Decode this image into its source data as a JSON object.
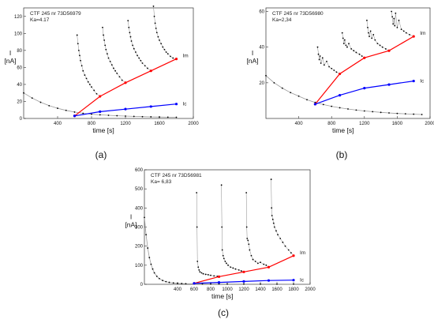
{
  "chart_data": [
    {
      "panel_caption": "(a)",
      "type": "line",
      "legend": [
        "CTF 245 nr 73D56979",
        "Ka=4.17"
      ],
      "xlabel": "time [s]",
      "ylabel_lines": [
        "I",
        "[nA]"
      ],
      "xlim": [
        0,
        2000
      ],
      "ylim": [
        0,
        130
      ],
      "xticks": [
        400,
        800,
        1200,
        1600,
        2000
      ],
      "yticks": [
        0,
        20,
        40,
        60,
        80,
        100,
        120
      ],
      "series": [
        {
          "name": "Im",
          "color": "#ff0000",
          "x": [
            600,
            900,
            1200,
            1500,
            1800
          ],
          "y": [
            3,
            26,
            42,
            56,
            70
          ]
        },
        {
          "name": "Ic",
          "color": "#0000ff",
          "x": [
            600,
            900,
            1200,
            1500,
            1800
          ],
          "y": [
            3,
            8,
            11,
            14,
            17
          ]
        }
      ],
      "decay_curve": {
        "color": "#9a9a9a",
        "x": [
          0,
          100,
          200,
          300,
          400,
          500,
          600,
          700,
          800,
          900,
          1000,
          1100,
          1200,
          1300,
          1400,
          1500,
          1600,
          1700,
          1800
        ],
        "y": [
          30,
          24,
          19,
          15,
          12,
          9.5,
          7.5,
          6,
          5,
          4.3,
          3.7,
          3.2,
          2.8,
          2.4,
          2.1,
          1.9,
          1.7,
          1.5,
          1.4
        ]
      },
      "transients": [
        {
          "x": [
            630,
            640,
            650,
            660,
            670,
            685,
            700,
            720,
            740,
            760,
            780,
            800,
            830,
            860,
            900
          ],
          "y": [
            98,
            88,
            80,
            74,
            68,
            62,
            56,
            51,
            47,
            43,
            40,
            37,
            33,
            29,
            26
          ]
        },
        {
          "x": [
            930,
            940,
            950,
            960,
            970,
            985,
            1000,
            1020,
            1040,
            1060,
            1080,
            1100,
            1130,
            1160,
            1200
          ],
          "y": [
            107,
            98,
            92,
            86,
            81,
            76,
            71,
            67,
            63,
            59,
            56,
            53,
            49,
            45,
            42
          ]
        },
        {
          "x": [
            1230,
            1240,
            1250,
            1260,
            1270,
            1285,
            1300,
            1320,
            1340,
            1360,
            1380,
            1400,
            1430,
            1460,
            1500
          ],
          "y": [
            115,
            107,
            101,
            96,
            91,
            86,
            82,
            78,
            74,
            71,
            68,
            65,
            62,
            59,
            56
          ]
        },
        {
          "x": [
            1530,
            1540,
            1550,
            1560,
            1570,
            1585,
            1600,
            1620,
            1640,
            1660,
            1680,
            1700,
            1730,
            1760,
            1800
          ],
          "y": [
            132,
            120,
            112,
            106,
            101,
            96,
            92,
            88,
            84,
            81,
            78,
            76,
            73,
            71,
            70
          ]
        }
      ]
    },
    {
      "panel_caption": "(b)",
      "type": "line",
      "legend": [
        "CTF 245 nr 73D56980",
        "Ka=2,34"
      ],
      "xlabel": "time [s]",
      "ylabel_lines": [
        "I",
        "[nA]"
      ],
      "xlim": [
        0,
        2000
      ],
      "ylim": [
        0,
        62
      ],
      "xticks": [
        400,
        800,
        1200,
        1600,
        2000
      ],
      "yticks": [
        20,
        40,
        60
      ],
      "series": [
        {
          "name": "Im",
          "color": "#ff0000",
          "x": [
            600,
            900,
            1200,
            1500,
            1800
          ],
          "y": [
            8,
            25,
            34,
            38,
            46
          ]
        },
        {
          "name": "Ic",
          "color": "#0000ff",
          "x": [
            600,
            900,
            1200,
            1500,
            1800
          ],
          "y": [
            8,
            13,
            17,
            19,
            21
          ]
        }
      ],
      "decay_curve": {
        "color": "#9a9a9a",
        "x": [
          0,
          100,
          200,
          300,
          400,
          500,
          600,
          700,
          800,
          900,
          1000,
          1100,
          1200,
          1300,
          1400,
          1500,
          1600,
          1700,
          1800,
          1900
        ],
        "y": [
          24,
          20,
          17,
          14.5,
          12.5,
          10.5,
          9,
          7.8,
          6.8,
          6,
          5.3,
          4.7,
          4.2,
          3.8,
          3.4,
          3.1,
          2.8,
          2.6,
          2.4,
          2.2
        ]
      },
      "transients": [
        {
          "x": [
            630,
            640,
            650,
            660,
            670,
            690,
            710,
            740,
            770,
            800,
            830,
            860,
            900
          ],
          "y": [
            40,
            36,
            33,
            35,
            31,
            34,
            30,
            32,
            29,
            28,
            27,
            26,
            25
          ]
        },
        {
          "x": [
            930,
            940,
            950,
            960,
            975,
            990,
            1010,
            1040,
            1070,
            1100,
            1140,
            1170,
            1200
          ],
          "y": [
            48,
            45,
            42,
            44,
            41,
            40,
            42,
            39,
            38,
            37,
            36,
            35,
            34
          ]
        },
        {
          "x": [
            1230,
            1240,
            1250,
            1260,
            1275,
            1290,
            1310,
            1330,
            1360,
            1390,
            1420,
            1460,
            1500
          ],
          "y": [
            55,
            51,
            48,
            46,
            49,
            45,
            47,
            44,
            42,
            41,
            40,
            39,
            38
          ]
        },
        {
          "x": [
            1530,
            1540,
            1550,
            1560,
            1570,
            1580,
            1600,
            1620,
            1650,
            1680,
            1710,
            1750,
            1800
          ],
          "y": [
            60,
            57,
            53,
            56,
            52,
            59,
            51,
            55,
            50,
            49,
            48,
            47,
            46
          ]
        }
      ]
    },
    {
      "panel_caption": "(c)",
      "type": "line",
      "legend": [
        "CTF 245 nr 73D56981",
        "Ka= 6,83"
      ],
      "xlabel": "time [s]",
      "ylabel_lines": [
        "I",
        "[nA]"
      ],
      "xlim": [
        0,
        2000
      ],
      "ylim": [
        0,
        600
      ],
      "xticks": [
        400,
        600,
        800,
        1000,
        1200,
        1400,
        1600,
        1800,
        2000
      ],
      "yticks": [
        0,
        100,
        200,
        300,
        400,
        500,
        600
      ],
      "series": [
        {
          "name": "Im",
          "color": "#ff0000",
          "x": [
            600,
            900,
            1200,
            1500,
            1800
          ],
          "y": [
            5,
            40,
            65,
            90,
            150
          ]
        },
        {
          "name": "Ic",
          "color": "#0000ff",
          "x": [
            600,
            900,
            1200,
            1500,
            1800
          ],
          "y": [
            5,
            10,
            15,
            20,
            22
          ]
        }
      ],
      "decay_curve": {
        "color": "#9a9a9a",
        "x": [
          0,
          20,
          40,
          60,
          80,
          100,
          120,
          150,
          180,
          220,
          260,
          300,
          350,
          400,
          450,
          500,
          600,
          700,
          800,
          900,
          1000,
          1200,
          1400,
          1600,
          1800
        ],
        "y": [
          350,
          260,
          190,
          140,
          105,
          80,
          60,
          42,
          30,
          20,
          14,
          10,
          7,
          5,
          4,
          3,
          2.5,
          2,
          1.8,
          1.6,
          1.5,
          1.3,
          1.2,
          1.1,
          1
        ]
      },
      "transients": [
        {
          "x": [
            630,
            635,
            640,
            650,
            660,
            670,
            690,
            710,
            740,
            770,
            800,
            840,
            880,
            900
          ],
          "y": [
            480,
            300,
            120,
            90,
            75,
            65,
            60,
            55,
            52,
            50,
            47,
            44,
            42,
            40
          ]
        },
        {
          "x": [
            930,
            935,
            940,
            950,
            960,
            975,
            990,
            1010,
            1040,
            1070,
            1100,
            1140,
            1170,
            1200
          ],
          "y": [
            520,
            300,
            180,
            150,
            135,
            120,
            110,
            100,
            90,
            85,
            80,
            75,
            70,
            65
          ]
        },
        {
          "x": [
            1230,
            1235,
            1240,
            1250,
            1260,
            1270,
            1290,
            1310,
            1340,
            1370,
            1400,
            1440,
            1470,
            1500
          ],
          "y": [
            480,
            300,
            240,
            230,
            210,
            180,
            150,
            130,
            120,
            110,
            115,
            105,
            100,
            90
          ]
        },
        {
          "x": [
            1530,
            1535,
            1540,
            1550,
            1560,
            1570,
            1590,
            1610,
            1640,
            1670,
            1700,
            1740,
            1770,
            1800
          ],
          "y": [
            550,
            400,
            360,
            340,
            320,
            300,
            280,
            260,
            240,
            220,
            200,
            180,
            165,
            150
          ]
        }
      ]
    }
  ]
}
